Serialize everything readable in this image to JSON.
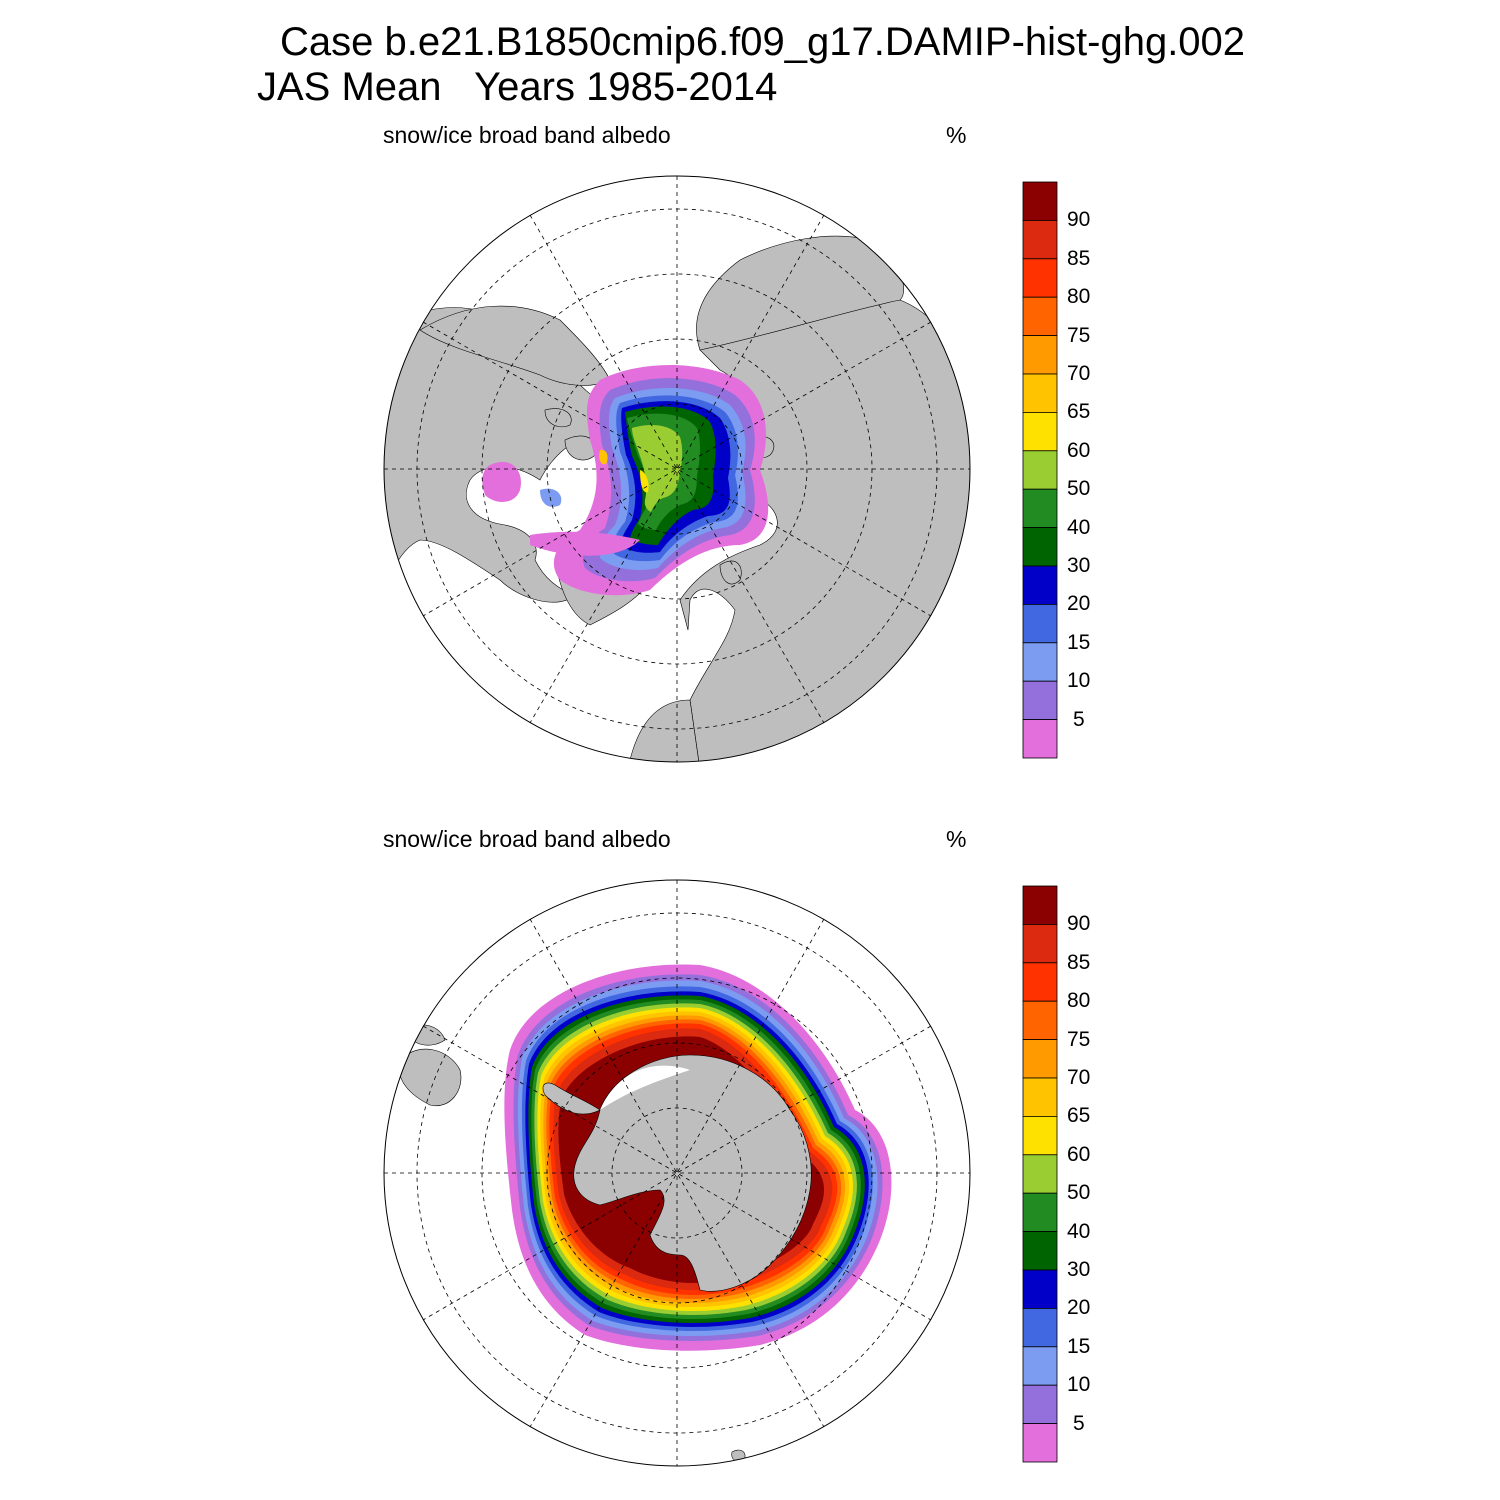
{
  "title": {
    "line1": "Case b.e21.B1850cmip6.f09_g17.DAMIP-hist-ghg.002",
    "line2": "JAS Mean   Years 1985-2014"
  },
  "panels": [
    {
      "hemisphere": "north",
      "variable": "snow/ice broad band albedo",
      "units": "%"
    },
    {
      "hemisphere": "south",
      "variable": "snow/ice broad band albedo",
      "units": "%"
    }
  ],
  "colorbar": {
    "levels": [
      "5",
      "10",
      "15",
      "20",
      "30",
      "40",
      "50",
      "60",
      "65",
      "70",
      "75",
      "80",
      "85",
      "90"
    ],
    "colors": [
      "#e36fdc",
      "#9370db",
      "#7b9cf0",
      "#4168e1",
      "#0000c8",
      "#006400",
      "#228b22",
      "#9acd32",
      "#ffe100",
      "#ffc300",
      "#ff9b00",
      "#ff6400",
      "#ff3200",
      "#db2a10",
      "#8b0000"
    ]
  },
  "colors": {
    "land": "#bebebe",
    "ocean": "#ffffff",
    "grid": "#000000"
  }
}
